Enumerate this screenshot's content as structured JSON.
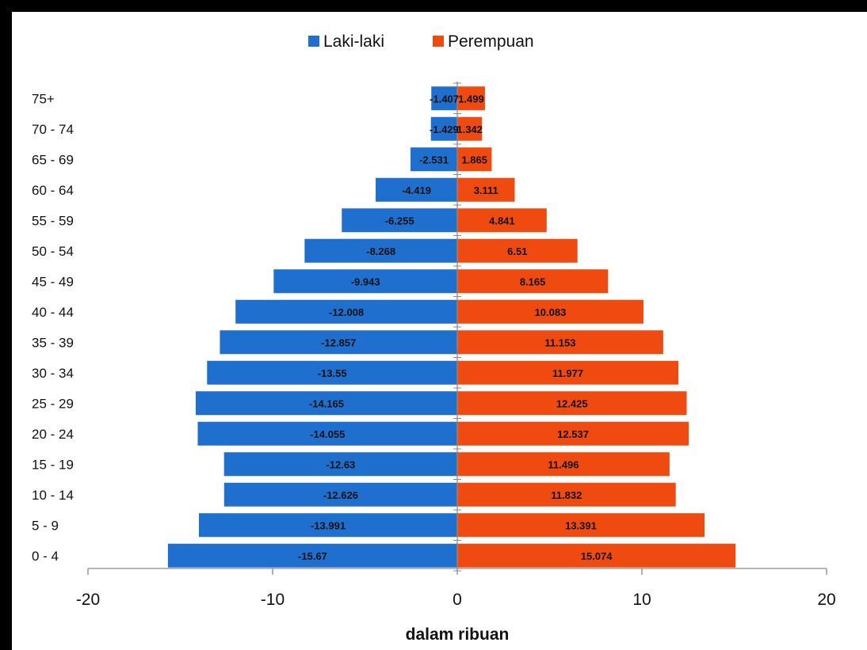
{
  "chart_data": {
    "type": "bar",
    "orientation": "horizontal",
    "categories": [
      "0 - 4",
      "5 - 9",
      "10 - 14",
      "15 - 19",
      "20 - 24",
      "25 - 29",
      "30 - 34",
      "35 - 39",
      "40 - 44",
      "45 - 49",
      "50 - 54",
      "55 - 59",
      "60 - 64",
      "65 - 69",
      "70 - 74",
      "75+"
    ],
    "series": [
      {
        "name": "Laki-laki",
        "color": "#1f6fcf",
        "values": [
          -15.67,
          -13.991,
          -12.626,
          -12.63,
          -14.055,
          -14.165,
          -13.55,
          -12.857,
          -12.008,
          -9.943,
          -8.268,
          -6.255,
          -4.419,
          -2.531,
          -1.429,
          -1.407
        ],
        "labels": [
          "-15.67",
          "-13.991",
          "-12.626",
          "-12.63",
          "-14.055",
          "-14.165",
          "-13.55",
          "-12.857",
          "-12.008",
          "-9.943",
          "-8.268",
          "-6.255",
          "-4.419",
          "-2.531",
          "-1.429",
          "-1.407"
        ]
      },
      {
        "name": "Perempuan",
        "color": "#ef4a0f",
        "values": [
          15.074,
          13.391,
          11.832,
          11.496,
          12.537,
          12.425,
          11.977,
          11.153,
          10.083,
          8.165,
          6.51,
          4.841,
          3.111,
          1.865,
          1.342,
          1.499
        ],
        "labels": [
          "15.074",
          "13.391",
          "11.832",
          "11.496",
          "12.537",
          "12.425",
          "11.977",
          "11.153",
          "10.083",
          "8.165",
          "6.51",
          "4.841",
          "3.111",
          "1.865",
          "1.342",
          "1.499"
        ]
      }
    ],
    "xlim": [
      -20,
      20
    ],
    "xticks": [
      -20,
      -10,
      0,
      10,
      20
    ],
    "xtick_labels": [
      "-20",
      "-10",
      "0",
      "10",
      "20"
    ],
    "xlabel": "dalam ribuan",
    "legend_position": "top-center",
    "grid": false
  }
}
